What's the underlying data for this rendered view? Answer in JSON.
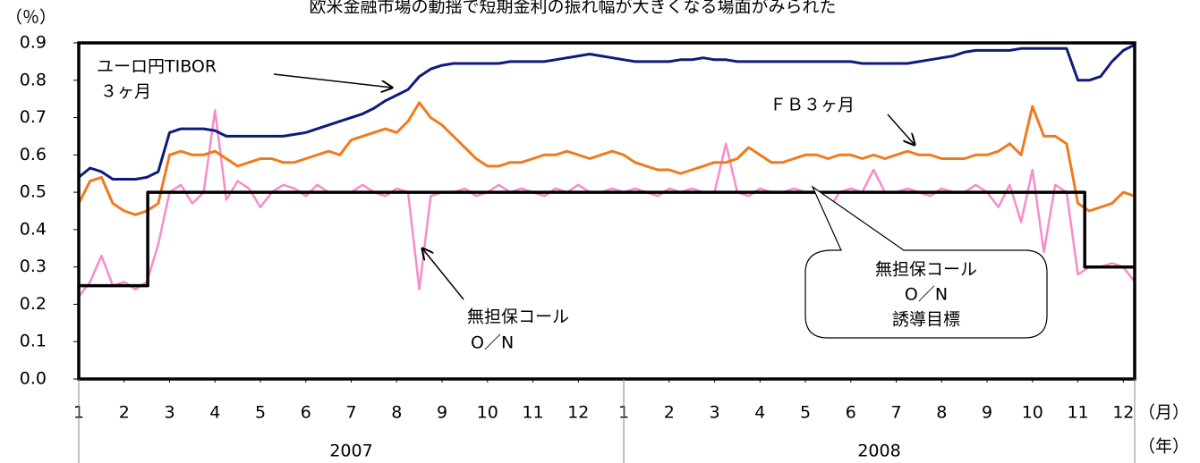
{
  "chart_data": {
    "type": "line",
    "title": "欧米金融市場の動揺で短期金利の振れ幅が大きくなる場面がみられた",
    "y_unit": "（％）",
    "x_unit": "（月）",
    "group_unit": "（年）",
    "groups": [
      {
        "label": "2007",
        "range": [
          0,
          12
        ]
      },
      {
        "label": "2008",
        "range": [
          12,
          23.25
        ]
      }
    ],
    "xlim": [
      0,
      23.25
    ],
    "xticks": [
      {
        "value": 0,
        "label": "1"
      },
      {
        "value": 1,
        "label": "2"
      },
      {
        "value": 2,
        "label": "3"
      },
      {
        "value": 3,
        "label": "4"
      },
      {
        "value": 4,
        "label": "5"
      },
      {
        "value": 5,
        "label": "6"
      },
      {
        "value": 6,
        "label": "7"
      },
      {
        "value": 7,
        "label": "8"
      },
      {
        "value": 8,
        "label": "9"
      },
      {
        "value": 9,
        "label": "10"
      },
      {
        "value": 10,
        "label": "11"
      },
      {
        "value": 11,
        "label": "12"
      },
      {
        "value": 12,
        "label": "1"
      },
      {
        "value": 13,
        "label": "2"
      },
      {
        "value": 14,
        "label": "3"
      },
      {
        "value": 15,
        "label": "4"
      },
      {
        "value": 16,
        "label": "5"
      },
      {
        "value": 17,
        "label": "6"
      },
      {
        "value": 18,
        "label": "7"
      },
      {
        "value": 19,
        "label": "8"
      },
      {
        "value": 20,
        "label": "9"
      },
      {
        "value": 21,
        "label": "10"
      },
      {
        "value": 22,
        "label": "11"
      },
      {
        "value": 23,
        "label": "12"
      }
    ],
    "ylim": [
      0,
      0.9
    ],
    "yticks": [
      {
        "value": 0,
        "label": "0.0"
      },
      0.1,
      0.2,
      0.3,
      0.4,
      0.5,
      0.6,
      0.7,
      0.8,
      0.9
    ],
    "x": [
      0,
      0.25,
      0.5,
      0.75,
      1,
      1.25,
      1.5,
      1.75,
      2,
      2.25,
      2.5,
      2.75,
      3,
      3.25,
      3.5,
      3.75,
      4,
      4.25,
      4.5,
      4.75,
      5,
      5.25,
      5.5,
      5.75,
      6,
      6.25,
      6.5,
      6.75,
      7,
      7.25,
      7.5,
      7.75,
      8,
      8.25,
      8.5,
      8.75,
      9,
      9.25,
      9.5,
      9.75,
      10,
      10.25,
      10.5,
      10.75,
      11,
      11.25,
      11.5,
      11.75,
      12,
      12.25,
      12.5,
      12.75,
      13,
      13.25,
      13.5,
      13.75,
      14,
      14.25,
      14.5,
      14.75,
      15,
      15.25,
      15.5,
      15.75,
      16,
      16.25,
      16.5,
      16.75,
      17,
      17.25,
      17.5,
      17.75,
      18,
      18.25,
      18.5,
      18.75,
      19,
      19.25,
      19.5,
      19.75,
      20,
      20.25,
      20.5,
      20.75,
      21,
      21.25,
      21.5,
      21.75,
      22,
      22.25,
      22.5,
      22.75,
      23,
      23.25
    ],
    "series": [
      {
        "color": "#f78ccb",
        "width": 2.5,
        "values": [
          0.22,
          0.26,
          0.33,
          0.25,
          0.26,
          0.24,
          0.26,
          0.36,
          0.5,
          0.52,
          0.47,
          0.5,
          0.72,
          0.48,
          0.53,
          0.51,
          0.46,
          0.5,
          0.52,
          0.51,
          0.49,
          0.52,
          0.5,
          0.5,
          0.5,
          0.52,
          0.5,
          0.49,
          0.51,
          0.5,
          0.24,
          0.49,
          0.5,
          0.5,
          0.51,
          0.49,
          0.5,
          0.52,
          0.5,
          0.51,
          0.5,
          0.49,
          0.51,
          0.5,
          0.52,
          0.5,
          0.5,
          0.51,
          0.5,
          0.51,
          0.5,
          0.49,
          0.51,
          0.5,
          0.51,
          0.5,
          0.5,
          0.63,
          0.5,
          0.49,
          0.51,
          0.5,
          0.5,
          0.51,
          0.5,
          0.5,
          0.45,
          0.5,
          0.51,
          0.5,
          0.56,
          0.5,
          0.5,
          0.51,
          0.5,
          0.49,
          0.51,
          0.5,
          0.5,
          0.52,
          0.5,
          0.46,
          0.52,
          0.42,
          0.56,
          0.34,
          0.52,
          0.5,
          0.28,
          0.3,
          0.3,
          0.31,
          0.3,
          0.26
        ]
      },
      {
        "color": "#f07b1e",
        "width": 3,
        "values": [
          0.47,
          0.53,
          0.54,
          0.47,
          0.45,
          0.44,
          0.45,
          0.47,
          0.6,
          0.61,
          0.6,
          0.6,
          0.61,
          0.59,
          0.57,
          0.58,
          0.59,
          0.59,
          0.58,
          0.58,
          0.59,
          0.6,
          0.61,
          0.6,
          0.64,
          0.65,
          0.66,
          0.67,
          0.66,
          0.69,
          0.74,
          0.7,
          0.68,
          0.65,
          0.62,
          0.59,
          0.57,
          0.57,
          0.58,
          0.58,
          0.59,
          0.6,
          0.6,
          0.61,
          0.6,
          0.59,
          0.6,
          0.61,
          0.6,
          0.58,
          0.57,
          0.56,
          0.56,
          0.55,
          0.56,
          0.57,
          0.58,
          0.58,
          0.59,
          0.62,
          0.6,
          0.58,
          0.58,
          0.59,
          0.6,
          0.6,
          0.59,
          0.6,
          0.6,
          0.59,
          0.6,
          0.59,
          0.6,
          0.61,
          0.6,
          0.6,
          0.59,
          0.59,
          0.59,
          0.6,
          0.6,
          0.61,
          0.63,
          0.6,
          0.73,
          0.65,
          0.65,
          0.63,
          0.47,
          0.45,
          0.46,
          0.47,
          0.5,
          0.49
        ]
      },
      {
        "color": "#101a7c",
        "width": 3,
        "values": [
          0.54,
          0.565,
          0.555,
          0.535,
          0.535,
          0.535,
          0.54,
          0.555,
          0.66,
          0.67,
          0.67,
          0.67,
          0.665,
          0.65,
          0.65,
          0.65,
          0.65,
          0.65,
          0.65,
          0.655,
          0.66,
          0.67,
          0.68,
          0.69,
          0.7,
          0.71,
          0.725,
          0.745,
          0.76,
          0.775,
          0.81,
          0.83,
          0.84,
          0.845,
          0.845,
          0.845,
          0.845,
          0.845,
          0.85,
          0.85,
          0.85,
          0.85,
          0.855,
          0.86,
          0.865,
          0.87,
          0.865,
          0.86,
          0.855,
          0.85,
          0.85,
          0.85,
          0.85,
          0.855,
          0.855,
          0.86,
          0.855,
          0.855,
          0.85,
          0.85,
          0.85,
          0.85,
          0.85,
          0.85,
          0.85,
          0.85,
          0.85,
          0.85,
          0.85,
          0.845,
          0.845,
          0.845,
          0.845,
          0.845,
          0.85,
          0.855,
          0.86,
          0.865,
          0.875,
          0.88,
          0.88,
          0.88,
          0.88,
          0.885,
          0.885,
          0.885,
          0.885,
          0.885,
          0.8,
          0.8,
          0.81,
          0.85,
          0.88,
          0.895
        ]
      },
      {
        "color": "#000000",
        "width": 3.5,
        "x": [
          0,
          1.52,
          1.52,
          22.15,
          22.15,
          23.25
        ],
        "values": [
          0.25,
          0.25,
          0.5,
          0.5,
          0.3,
          0.3
        ]
      }
    ],
    "annotations": [
      {
        "lines": [
          "ユーロ円TIBOR",
          "３ヶ月"
        ]
      },
      {
        "lines": [
          "ＦＢ３ヶ月"
        ]
      },
      {
        "lines": [
          "無担保コール",
          "O／N"
        ]
      },
      {
        "lines": [
          "無担保コール",
          "O／N",
          "誘導目標"
        ]
      }
    ]
  }
}
